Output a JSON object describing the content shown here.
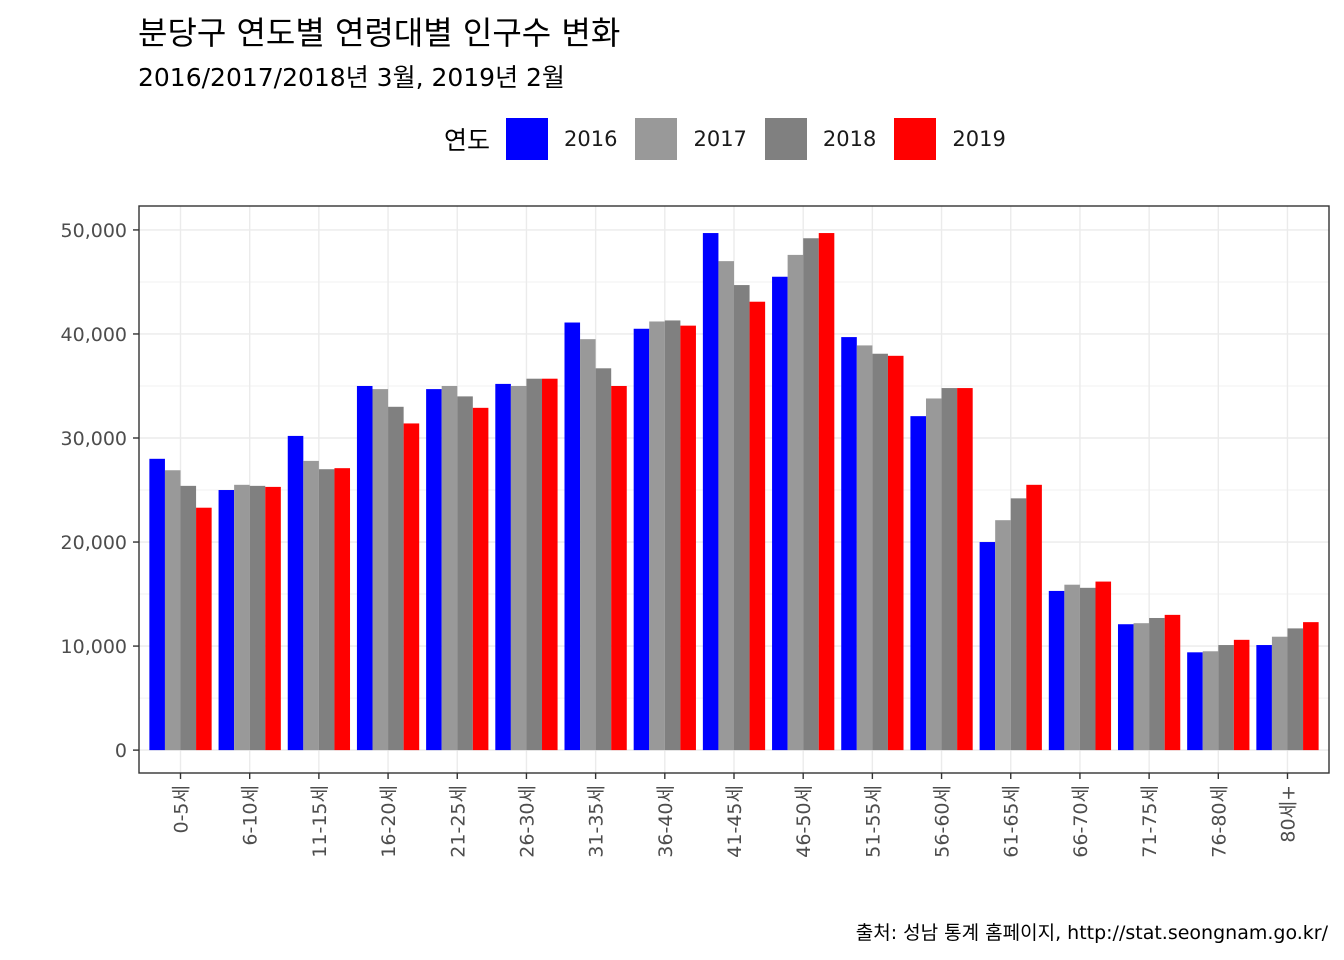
{
  "title": "분당구 연도별 연령대별 인구수 변화",
  "subtitle": "2016/2017/2018년 3월, 2019년 2월",
  "caption": "출처: 성남 통계 홈페이지, http://stat.seongnam.go.kr/",
  "legend": {
    "title": "연도",
    "items": [
      {
        "label": "2016",
        "color": "#0000ff"
      },
      {
        "label": "2017",
        "color": "#999999"
      },
      {
        "label": "2018",
        "color": "#808080"
      },
      {
        "label": "2019",
        "color": "#ff0000"
      }
    ]
  },
  "chart_data": {
    "type": "bar",
    "title": "분당구 연도별 연령대별 인구수 변화",
    "subtitle": "2016/2017/2018년 3월, 2019년 2월",
    "xlabel": "",
    "ylabel": "",
    "ylim": [
      -2200,
      52300
    ],
    "yticks": [
      0,
      10000,
      20000,
      30000,
      40000,
      50000
    ],
    "ytick_labels": [
      "0",
      "10,000",
      "20,000",
      "30,000",
      "40,000",
      "50,000"
    ],
    "grid": true,
    "legend_position": "top",
    "categories": [
      "0-5세",
      "6-10세",
      "11-15세",
      "16-20세",
      "21-25세",
      "26-30세",
      "31-35세",
      "36-40세",
      "41-45세",
      "46-50세",
      "51-55세",
      "56-60세",
      "61-65세",
      "66-70세",
      "71-75세",
      "76-80세",
      "80세+"
    ],
    "series": [
      {
        "name": "2016",
        "color": "#0000ff",
        "values": [
          28000,
          25000,
          30200,
          35000,
          34700,
          35200,
          41100,
          40500,
          49700,
          45500,
          39700,
          32100,
          20000,
          15300,
          12100,
          9400,
          10100
        ]
      },
      {
        "name": "2017",
        "color": "#999999",
        "values": [
          26900,
          25500,
          27800,
          34700,
          35000,
          35000,
          39500,
          41200,
          47000,
          47600,
          38900,
          33800,
          22100,
          15900,
          12200,
          9500,
          10900
        ]
      },
      {
        "name": "2018",
        "color": "#808080",
        "values": [
          25400,
          25400,
          27000,
          33000,
          34000,
          35700,
          36700,
          41300,
          44700,
          49200,
          38100,
          34800,
          24200,
          15600,
          12700,
          10100,
          11700
        ]
      },
      {
        "name": "2019",
        "color": "#ff0000",
        "values": [
          23300,
          25300,
          27100,
          31400,
          32900,
          35700,
          35000,
          40800,
          43100,
          49700,
          37900,
          34800,
          25500,
          16200,
          13000,
          10600,
          12300
        ]
      }
    ]
  }
}
